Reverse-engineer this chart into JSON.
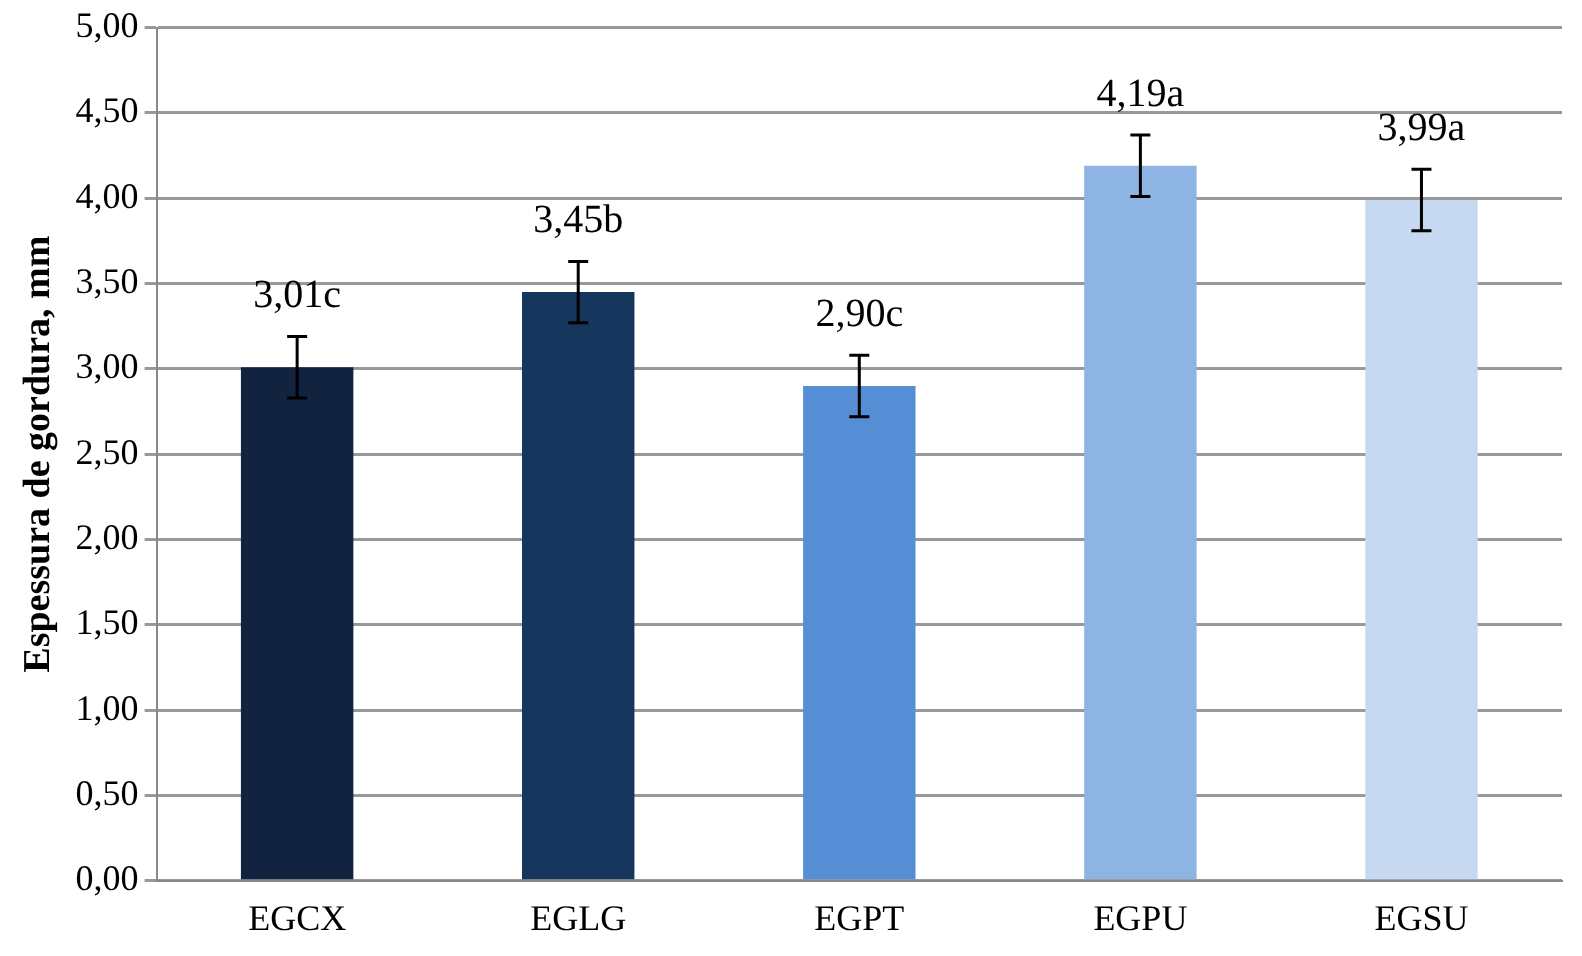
{
  "chart_data": {
    "type": "bar",
    "ylabel": "Espessura de gordura, mm",
    "categories": [
      "EGCX",
      "EGLG",
      "EGPT",
      "EGPU",
      "EGSU"
    ],
    "values": [
      3.01,
      3.45,
      2.9,
      4.19,
      3.99
    ],
    "colors": [
      "#12233f",
      "#17365d",
      "#558ed5",
      "#8eb4e3",
      "#c6d9f1"
    ],
    "errors": [
      0.18,
      0.18,
      0.18,
      0.18,
      0.18
    ],
    "value_labels": [
      "3,01c",
      "3,45b",
      "2,90c",
      "4,19a",
      "3,99a"
    ],
    "ylim": [
      0,
      5
    ],
    "yticks": [
      {
        "value": 0,
        "label": "0,00"
      },
      {
        "value": 0.5,
        "label": "0,50"
      },
      {
        "value": 1,
        "label": "1,00"
      },
      {
        "value": 1.5,
        "label": "1,50"
      },
      {
        "value": 2,
        "label": "2,00"
      },
      {
        "value": 2.5,
        "label": "2,50"
      },
      {
        "value": 3,
        "label": "3,00"
      },
      {
        "value": 3.5,
        "label": "3,50"
      },
      {
        "value": 4,
        "label": "4,00"
      },
      {
        "value": 4.5,
        "label": "4,50"
      },
      {
        "value": 5,
        "label": "5,00"
      }
    ],
    "grid": "y"
  }
}
